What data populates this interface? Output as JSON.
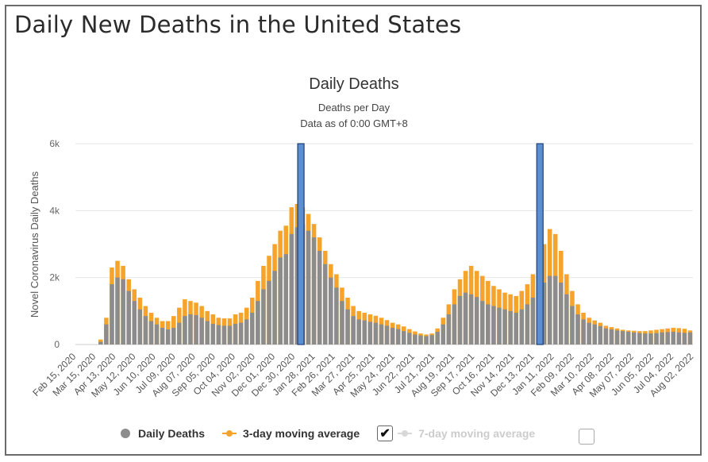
{
  "page": {
    "title": "Daily New Deaths in the United States"
  },
  "chart_data": {
    "type": "bar",
    "title": "Daily Deaths",
    "subtitle": "Deaths per Day",
    "subtitle2": "Data as of 0:00 GMT+8",
    "ylabel": "Novel Coronavirus Daily Deaths",
    "ylim": [
      0,
      6000
    ],
    "yticks": [
      {
        "value": 0,
        "label": "0"
      },
      {
        "value": 2000,
        "label": "2k"
      },
      {
        "value": 4000,
        "label": "4k"
      },
      {
        "value": 6000,
        "label": "6k"
      }
    ],
    "x_tick_labels": [
      "Feb 15, 2020",
      "Mar 15, 2020",
      "Apr 13, 2020",
      "May 12, 2020",
      "Jun 10, 2020",
      "Jul 09, 2020",
      "Aug 07, 2020",
      "Sep 05, 2020",
      "Oct 04, 2020",
      "Nov 02, 2020",
      "Dec 01, 2020",
      "Dec 30, 2020",
      "Jan 28, 2021",
      "Feb 26, 2021",
      "Mar 27, 2021",
      "Apr 25, 2021",
      "May 24, 2021",
      "Jun 22, 2021",
      "Jul 21, 2021",
      "Aug 19, 2021",
      "Sep 17, 2021",
      "Oct 16, 2021",
      "Nov 14, 2021",
      "Dec 13, 2021",
      "Jan 11, 2022",
      "Feb 09, 2022",
      "Mar 10, 2022",
      "Apr 08, 2022",
      "May 07, 2022",
      "Jun 05, 2022",
      "Jul 04, 2022",
      "Aug 02, 2022"
    ],
    "series": [
      {
        "name": "Daily Deaths",
        "color": "#8c8c8c",
        "values": [
          0,
          0,
          0,
          0,
          80,
          600,
          1800,
          2000,
          1950,
          1600,
          1300,
          1050,
          850,
          700,
          600,
          500,
          450,
          500,
          650,
          850,
          900,
          880,
          800,
          700,
          620,
          580,
          560,
          560,
          620,
          650,
          750,
          950,
          1300,
          1650,
          1900,
          2200,
          2600,
          2700,
          3300,
          3500,
          3600,
          3400,
          3200,
          2800,
          2400,
          2000,
          1700,
          1300,
          1050,
          850,
          750,
          720,
          680,
          650,
          600,
          560,
          500,
          460,
          400,
          350,
          300,
          270,
          250,
          280,
          380,
          600,
          900,
          1200,
          1450,
          1550,
          1500,
          1420,
          1300,
          1200,
          1150,
          1100,
          1050,
          1000,
          950,
          1050,
          1200,
          1400,
          1600,
          1850,
          2050,
          2050,
          1850,
          1500,
          1150,
          900,
          750,
          650,
          600,
          550,
          480,
          450,
          420,
          400,
          380,
          360,
          340,
          330,
          330,
          340,
          360,
          370,
          380,
          360,
          350,
          360
        ]
      },
      {
        "name": "3-day moving average",
        "color": "#f5a32a",
        "values": [
          0,
          0,
          0,
          0,
          150,
          800,
          2300,
          2500,
          2350,
          1950,
          1650,
          1400,
          1150,
          950,
          800,
          700,
          700,
          850,
          1100,
          1350,
          1300,
          1250,
          1150,
          1000,
          900,
          800,
          780,
          780,
          900,
          950,
          1100,
          1400,
          1900,
          2350,
          2650,
          3000,
          3400,
          3550,
          4100,
          4200,
          4100,
          3900,
          3600,
          3200,
          2800,
          2400,
          2100,
          1700,
          1400,
          1150,
          1000,
          950,
          900,
          860,
          800,
          730,
          650,
          600,
          540,
          460,
          390,
          330,
          300,
          330,
          480,
          800,
          1200,
          1650,
          1950,
          2200,
          2350,
          2200,
          2050,
          1900,
          1750,
          1650,
          1550,
          1500,
          1450,
          1600,
          1800,
          2100,
          2500,
          3000,
          3450,
          3300,
          2800,
          2100,
          1600,
          1200,
          950,
          800,
          720,
          650,
          560,
          520,
          480,
          440,
          420,
          410,
          400,
          400,
          420,
          440,
          460,
          480,
          500,
          490,
          470,
          420
        ]
      }
    ],
    "highlight_regions": [
      {
        "label": "Dec 30, 2020",
        "ymax": 6000
      },
      {
        "label": "Dec 13, 2021",
        "ymax": 6000
      }
    ],
    "legend": {
      "position": "bottom",
      "items": [
        {
          "name": "Daily Deaths",
          "enabled": true
        },
        {
          "name": "3-day moving average",
          "enabled": true
        },
        {
          "name": "7-day moving average",
          "enabled": false
        }
      ]
    }
  }
}
